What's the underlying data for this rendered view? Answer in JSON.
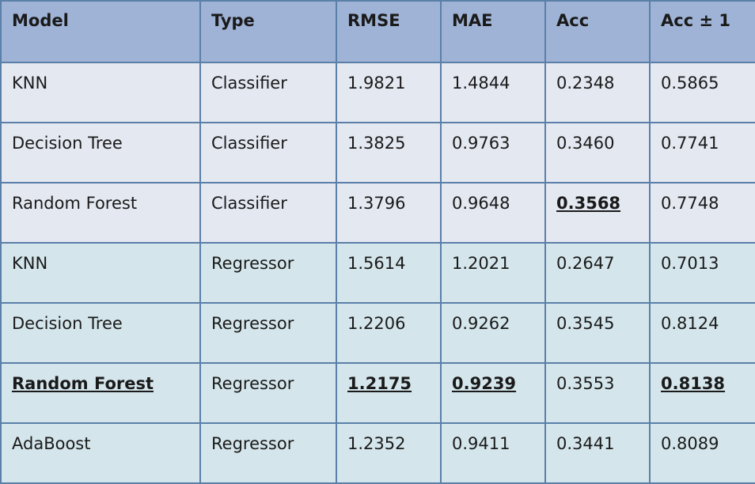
{
  "chart_data": {
    "type": "table",
    "columns": [
      "Model",
      "Type",
      "RMSE",
      "MAE",
      "Acc",
      "Acc ± 1"
    ],
    "rows": [
      {
        "model": "KNN",
        "type": "Classifier",
        "rmse": "1.9821",
        "mae": "1.4844",
        "acc": "0.2348",
        "acc1": "0.5865",
        "best": []
      },
      {
        "model": "Decision Tree",
        "type": "Classifier",
        "rmse": "1.3825",
        "mae": "0.9763",
        "acc": "0.3460",
        "acc1": "0.7741",
        "best": []
      },
      {
        "model": "Random Forest",
        "type": "Classifier",
        "rmse": "1.3796",
        "mae": "0.9648",
        "acc": "0.3568",
        "acc1": "0.7748",
        "best": [
          "acc"
        ]
      },
      {
        "model": "KNN",
        "type": "Regressor",
        "rmse": "1.5614",
        "mae": "1.2021",
        "acc": "0.2647",
        "acc1": "0.7013",
        "best": []
      },
      {
        "model": "Decision Tree",
        "type": "Regressor",
        "rmse": "1.2206",
        "mae": "0.9262",
        "acc": "0.3545",
        "acc1": "0.8124",
        "best": []
      },
      {
        "model": "Random Forest",
        "type": "Regressor",
        "rmse": "1.2175",
        "mae": "0.9239",
        "acc": "0.3553",
        "acc1": "0.8138",
        "best": [
          "model",
          "rmse",
          "mae",
          "acc1"
        ]
      },
      {
        "model": "AdaBoost",
        "type": "Regressor",
        "rmse": "1.2352",
        "mae": "0.9411",
        "acc": "0.3441",
        "acc1": "0.8089",
        "best": []
      }
    ],
    "colors": {
      "header_bg": "#9fb3d6",
      "classifier_bg": "#e4e8f1",
      "regressor_bg": "#d4e6ec",
      "border": "#5a7fa8"
    }
  }
}
